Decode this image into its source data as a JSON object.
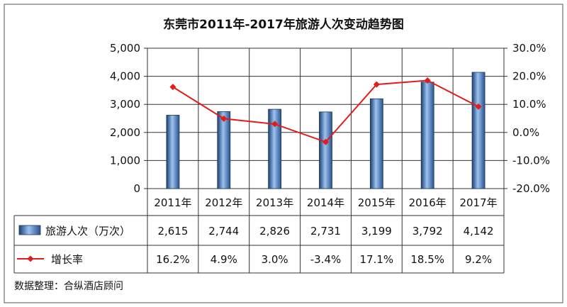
{
  "chart_data": {
    "type": "bar+line",
    "title": "东莞市2011年-2017年旅游人次变动趋势图",
    "categories": [
      "2011年",
      "2012年",
      "2013年",
      "2014年",
      "2015年",
      "2016年",
      "2017年"
    ],
    "series": [
      {
        "name": "旅游人次（万次）",
        "kind": "bar",
        "axis": "left",
        "values": [
          2615,
          2744,
          2826,
          2731,
          3199,
          3792,
          4142
        ],
        "labels": [
          "2,615",
          "2,744",
          "2,826",
          "2,731",
          "3,199",
          "3,792",
          "4,142"
        ]
      },
      {
        "name": "增长率",
        "kind": "line",
        "axis": "right",
        "values": [
          16.2,
          4.9,
          3.0,
          -3.4,
          17.1,
          18.5,
          9.2
        ],
        "labels": [
          "16.2%",
          "4.9%",
          "3.0%",
          "-3.4%",
          "17.1%",
          "18.5%",
          "9.2%"
        ],
        "color": "#e31b1b"
      }
    ],
    "y_left": {
      "min": 0,
      "max": 5000,
      "ticks": [
        "0",
        "1,000",
        "2,000",
        "3,000",
        "4,000",
        "5,000"
      ]
    },
    "y_right": {
      "min": -20,
      "max": 30,
      "ticks": [
        "-20.0%",
        "-10.0%",
        "0.0%",
        "10.0%",
        "20.0%",
        "30.0%"
      ]
    },
    "grid": true,
    "legend": "data-table",
    "source": "数据整理：合纵酒店顾问"
  }
}
